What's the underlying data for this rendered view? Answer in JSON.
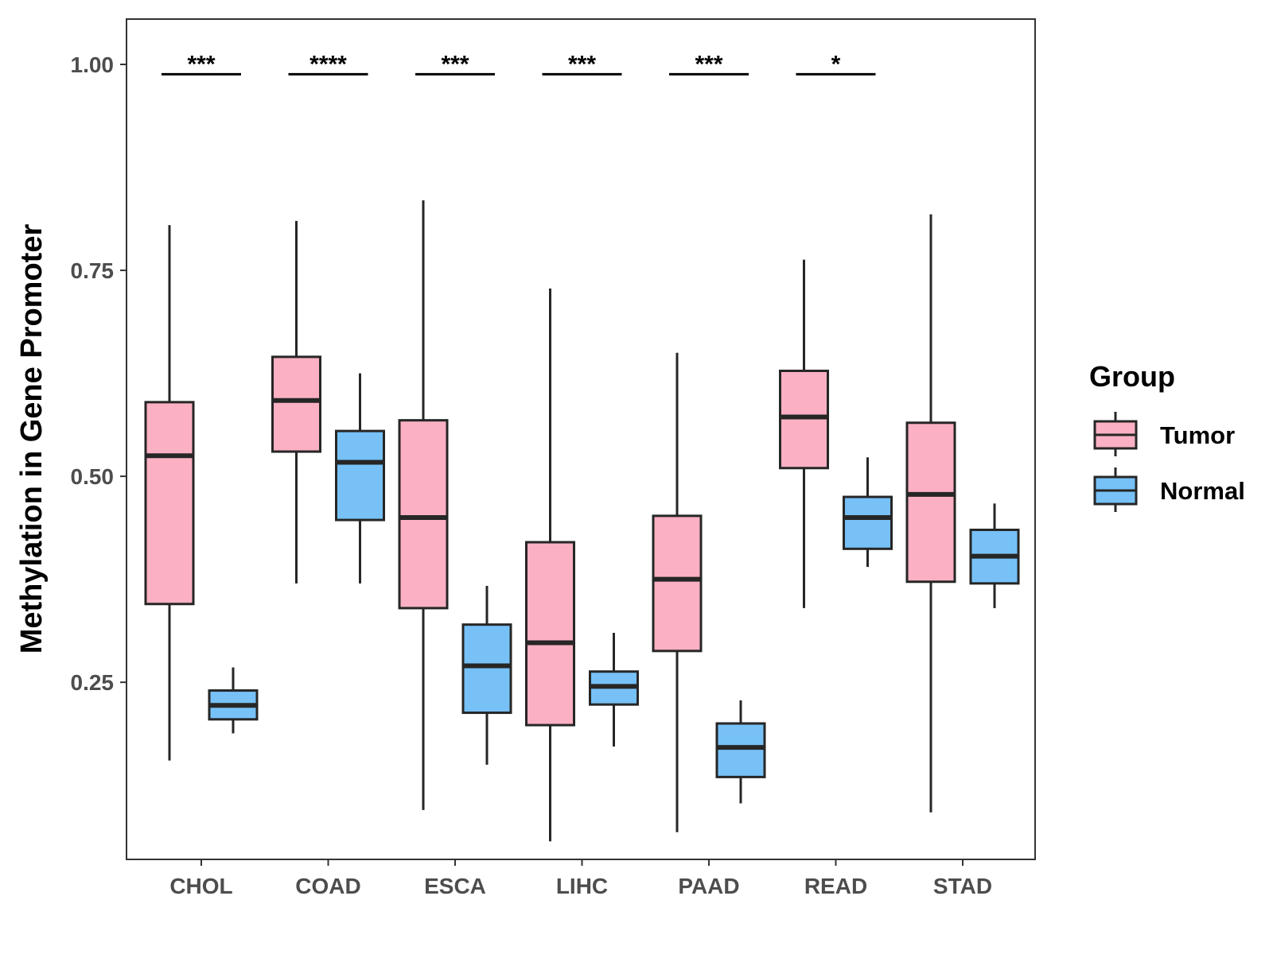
{
  "chart_data": {
    "type": "boxplot",
    "title": "",
    "xlabel": "",
    "ylabel": "Methylation in Gene Promoter",
    "ylim": [
      0.035,
      1.055
    ],
    "yticks": [
      0.25,
      0.5,
      0.75,
      1.0
    ],
    "ytick_labels": [
      "0.25",
      "0.50",
      "0.75",
      "1.00"
    ],
    "categories": [
      "CHOL",
      "COAD",
      "ESCA",
      "LIHC",
      "PAAD",
      "READ",
      "STAD"
    ],
    "grid": false,
    "legend": {
      "title": "Group",
      "position": "right",
      "entries": [
        {
          "name": "Tumor",
          "color": "#FBB1C3"
        },
        {
          "name": "Normal",
          "color": "#77C1F7"
        }
      ]
    },
    "series": [
      {
        "name": "Tumor",
        "color": "#FBB1C3",
        "boxes": [
          {
            "min": 0.155,
            "q1": 0.345,
            "median": 0.525,
            "q3": 0.59,
            "max": 0.805
          },
          {
            "min": 0.37,
            "q1": 0.53,
            "median": 0.592,
            "q3": 0.645,
            "max": 0.81
          },
          {
            "min": 0.095,
            "q1": 0.34,
            "median": 0.45,
            "q3": 0.568,
            "max": 0.835
          },
          {
            "min": 0.057,
            "q1": 0.198,
            "median": 0.298,
            "q3": 0.42,
            "max": 0.728
          },
          {
            "min": 0.068,
            "q1": 0.288,
            "median": 0.375,
            "q3": 0.452,
            "max": 0.65
          },
          {
            "min": 0.34,
            "q1": 0.51,
            "median": 0.572,
            "q3": 0.628,
            "max": 0.763
          },
          {
            "min": 0.092,
            "q1": 0.372,
            "median": 0.478,
            "q3": 0.565,
            "max": 0.818
          }
        ]
      },
      {
        "name": "Normal",
        "color": "#77C1F7",
        "boxes": [
          {
            "min": 0.188,
            "q1": 0.205,
            "median": 0.222,
            "q3": 0.24,
            "max": 0.268
          },
          {
            "min": 0.37,
            "q1": 0.447,
            "median": 0.517,
            "q3": 0.555,
            "max": 0.625
          },
          {
            "min": 0.15,
            "q1": 0.213,
            "median": 0.27,
            "q3": 0.32,
            "max": 0.367
          },
          {
            "min": 0.172,
            "q1": 0.223,
            "median": 0.245,
            "q3": 0.263,
            "max": 0.31
          },
          {
            "min": 0.103,
            "q1": 0.135,
            "median": 0.171,
            "q3": 0.2,
            "max": 0.228
          },
          {
            "min": 0.39,
            "q1": 0.412,
            "median": 0.45,
            "q3": 0.475,
            "max": 0.523
          },
          {
            "min": 0.34,
            "q1": 0.37,
            "median": 0.403,
            "q3": 0.435,
            "max": 0.467
          }
        ]
      }
    ],
    "annotations": [
      {
        "category": "CHOL",
        "label": "***",
        "y": 0.988
      },
      {
        "category": "COAD",
        "label": "****",
        "y": 0.988
      },
      {
        "category": "ESCA",
        "label": "***",
        "y": 0.988
      },
      {
        "category": "LIHC",
        "label": "***",
        "y": 0.988
      },
      {
        "category": "PAAD",
        "label": "***",
        "y": 0.988
      },
      {
        "category": "READ",
        "label": "*",
        "y": 0.988
      }
    ],
    "outline_color": "#262626"
  }
}
